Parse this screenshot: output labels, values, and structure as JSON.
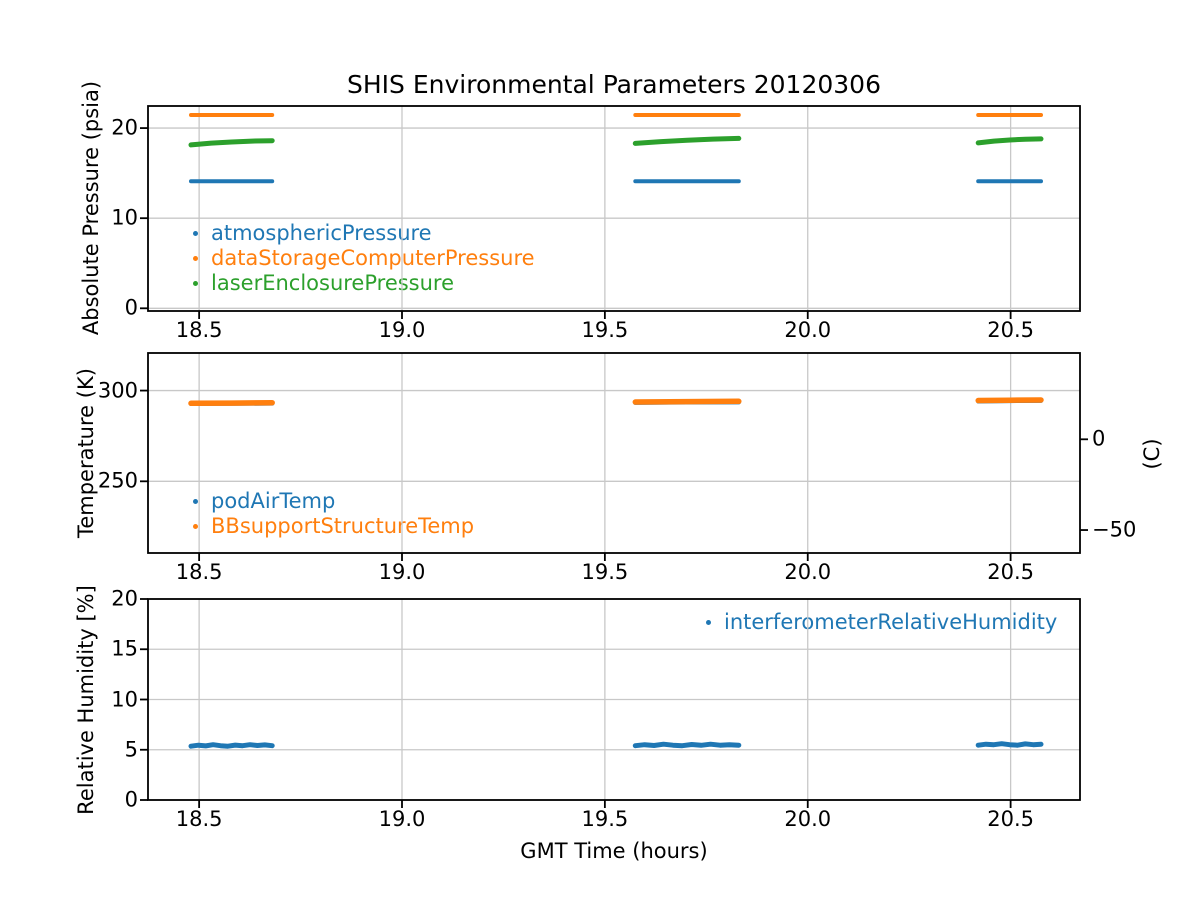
{
  "title": "SHIS Environmental Parameters 20120306",
  "xlabel": "GMT Time (hours)",
  "colors": {
    "blue": "#1f77b4",
    "orange": "#ff7f0e",
    "green": "#2ca02c",
    "grid": "#c8c8c8",
    "spine": "#000000",
    "text": "#000000"
  },
  "chart_data": [
    {
      "name": "absolute-pressure-panel",
      "type": "scatter",
      "ylabel": "Absolute Pressure (psia)",
      "xlim": [
        18.374,
        20.671
      ],
      "ylim": [
        -0.3,
        22.45
      ],
      "xticks": [
        {
          "v": 18.5,
          "label": "18.5"
        },
        {
          "v": 19.0,
          "label": "19.0"
        },
        {
          "v": 19.5,
          "label": "19.5"
        },
        {
          "v": 20.0,
          "label": "20.0"
        },
        {
          "v": 20.5,
          "label": "20.5"
        }
      ],
      "yticks": [
        {
          "v": 0,
          "label": "0"
        },
        {
          "v": 10,
          "label": "10"
        },
        {
          "v": 20,
          "label": "20"
        }
      ],
      "grid": true,
      "legend_loc": "lower left",
      "segments_x": [
        [
          18.48,
          18.68
        ],
        [
          19.575,
          19.83
        ],
        [
          20.42,
          20.575
        ]
      ],
      "series": [
        {
          "name": "atmosphericPressure",
          "color": "#1f77b4",
          "lw": 4,
          "segments": [
            [
              14.1,
              14.1,
              14.1
            ],
            [
              14.1,
              14.1,
              14.1
            ],
            [
              14.1,
              14.1,
              14.1
            ]
          ]
        },
        {
          "name": "dataStorageComputerPressure",
          "color": "#ff7f0e",
          "lw": 4,
          "segments": [
            [
              21.45,
              21.45,
              21.45
            ],
            [
              21.45,
              21.45,
              21.45
            ],
            [
              21.45,
              21.45,
              21.45
            ]
          ]
        },
        {
          "name": "laserEnclosurePressure",
          "color": "#2ca02c",
          "lw": 5,
          "segments": [
            [
              18.13,
              18.33,
              18.46,
              18.55,
              18.6
            ],
            [
              18.3,
              18.5,
              18.65,
              18.78,
              18.85
            ],
            [
              18.35,
              18.55,
              18.68,
              18.77,
              18.8
            ]
          ]
        }
      ]
    },
    {
      "name": "temperature-panel",
      "type": "scatter",
      "ylabel": "Temperature (K)",
      "ylabel_right": "(C)",
      "xlim": [
        18.374,
        20.671
      ],
      "ylim": [
        210.5,
        320.7
      ],
      "xticks": [
        {
          "v": 18.5,
          "label": "18.5"
        },
        {
          "v": 19.0,
          "label": "19.0"
        },
        {
          "v": 19.5,
          "label": "19.5"
        },
        {
          "v": 20.0,
          "label": "20.0"
        },
        {
          "v": 20.5,
          "label": "20.5"
        }
      ],
      "yticks": [
        {
          "v": 250,
          "label": "250"
        },
        {
          "v": 300,
          "label": "300"
        }
      ],
      "yticks_right": [
        {
          "v": 273.15,
          "label": "0"
        },
        {
          "v": 223.15,
          "label": "−50"
        }
      ],
      "grid": true,
      "legend_loc": "lower left",
      "segments_x": [
        [
          18.48,
          18.68
        ],
        [
          19.575,
          19.83
        ],
        [
          20.42,
          20.575
        ]
      ],
      "series": [
        {
          "name": "podAirTemp",
          "color": "#1f77b4",
          "lw": 4,
          "segments": [
            [
              292.6,
              292.7,
              292.8
            ],
            [
              293.2,
              293.4,
              293.5
            ],
            [
              294.0,
              294.2,
              294.3
            ]
          ]
        },
        {
          "name": "BBsupportStructureTemp",
          "color": "#ff7f0e",
          "lw": 5.5,
          "segments": [
            [
              293.0,
              293.1,
              293.3
            ],
            [
              293.7,
              293.9,
              294.1
            ],
            [
              294.5,
              294.7,
              294.8
            ]
          ]
        }
      ]
    },
    {
      "name": "relative-humidity-panel",
      "type": "scatter",
      "ylabel": "Relative Humidity [%]",
      "xlim": [
        18.374,
        20.671
      ],
      "ylim": [
        0,
        20
      ],
      "xticks": [
        {
          "v": 18.5,
          "label": "18.5"
        },
        {
          "v": 19.0,
          "label": "19.0"
        },
        {
          "v": 19.5,
          "label": "19.5"
        },
        {
          "v": 20.0,
          "label": "20.0"
        },
        {
          "v": 20.5,
          "label": "20.5"
        }
      ],
      "yticks": [
        {
          "v": 0,
          "label": "0"
        },
        {
          "v": 5,
          "label": "5"
        },
        {
          "v": 10,
          "label": "10"
        },
        {
          "v": 15,
          "label": "15"
        },
        {
          "v": 20,
          "label": "20"
        }
      ],
      "grid": true,
      "legend_loc": "upper right",
      "segments_x": [
        [
          18.48,
          18.68
        ],
        [
          19.575,
          19.83
        ],
        [
          20.42,
          20.575
        ]
      ],
      "series": [
        {
          "name": "interferometerRelativeHumidity",
          "color": "#1f77b4",
          "lw": 5,
          "segments": [
            [
              5.35,
              5.45,
              5.38,
              5.5,
              5.4,
              5.35,
              5.46,
              5.4,
              5.5,
              5.42,
              5.48,
              5.4
            ],
            [
              5.4,
              5.5,
              5.42,
              5.55,
              5.45,
              5.4,
              5.52,
              5.44,
              5.55,
              5.45,
              5.5,
              5.45
            ],
            [
              5.45,
              5.55,
              5.5,
              5.6,
              5.5,
              5.45,
              5.58,
              5.5,
              5.55
            ]
          ]
        }
      ]
    }
  ]
}
